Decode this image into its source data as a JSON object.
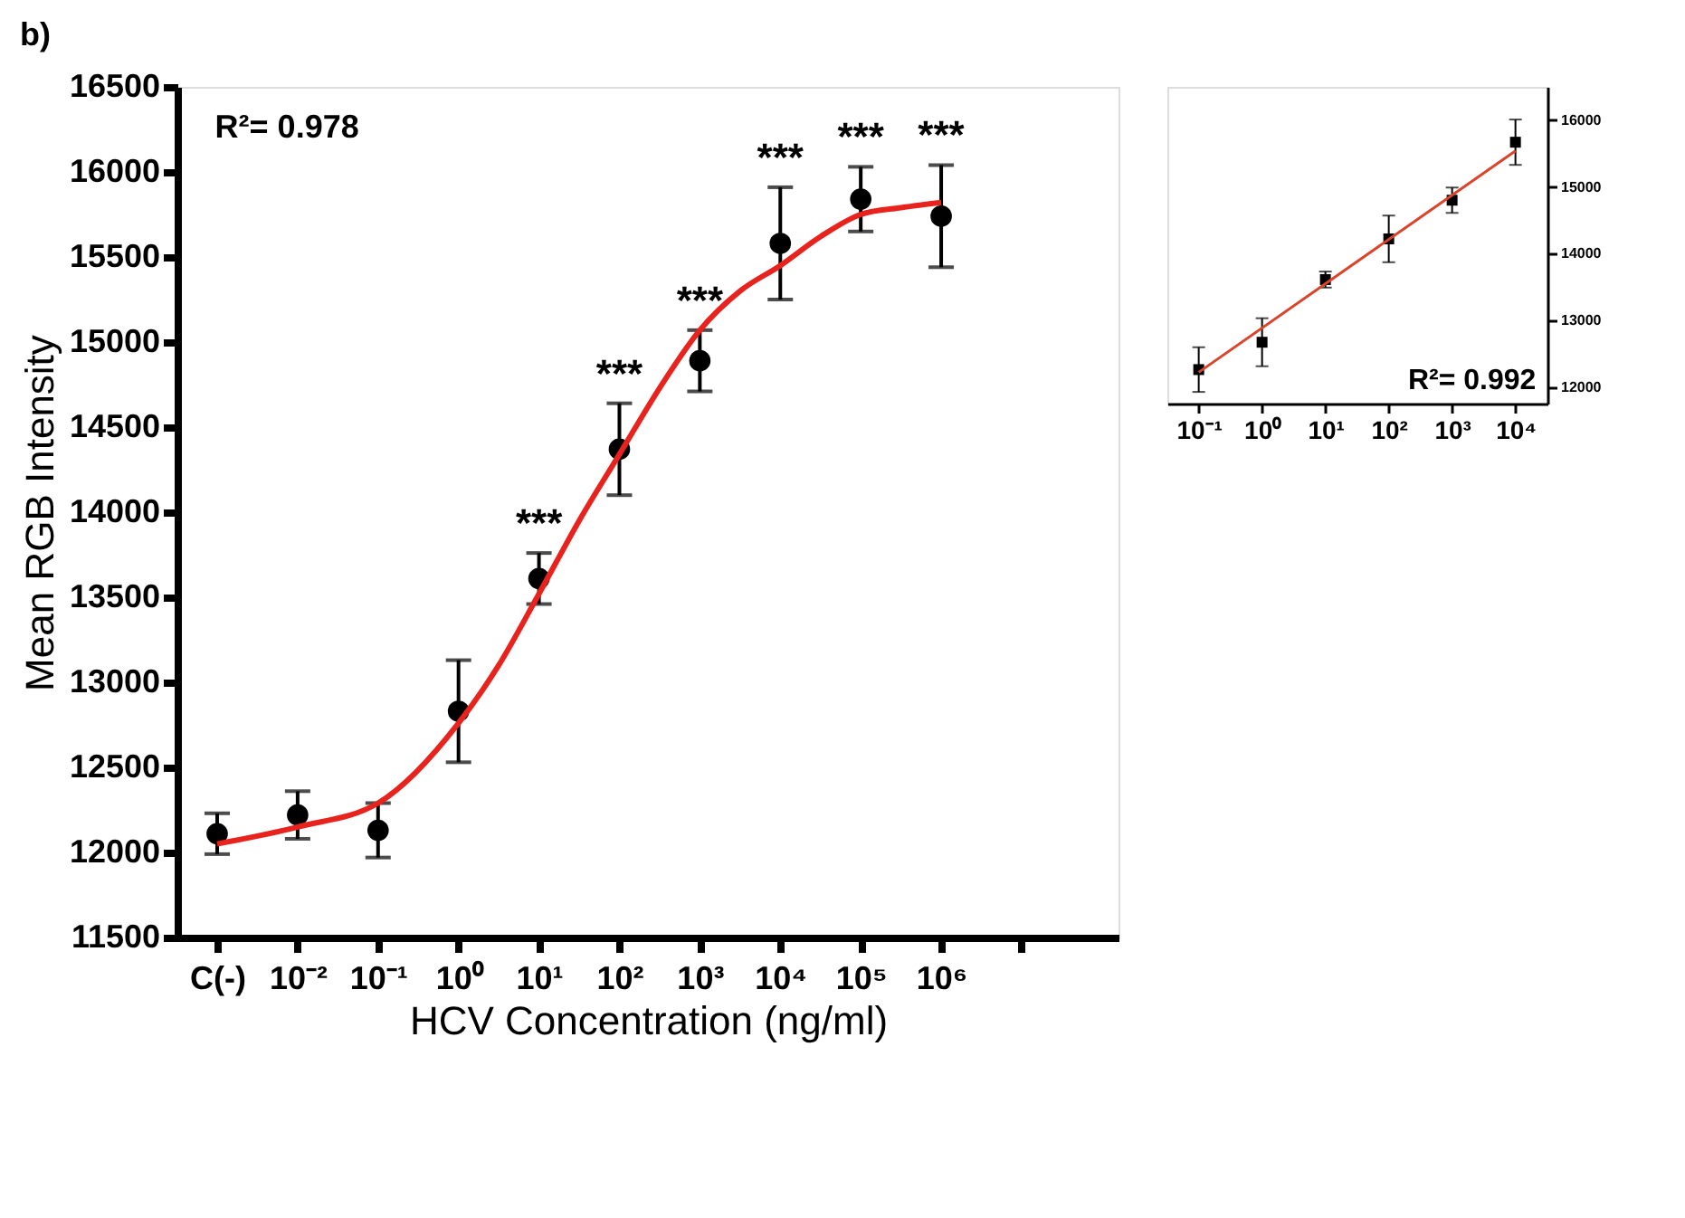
{
  "chart_data": [
    {
      "type": "scatter",
      "title": "b)",
      "xlabel": "HCV Concentration (ng/ml)",
      "ylabel": "Mean RGB Intensity",
      "x": [
        0.001,
        0.01,
        0.1,
        1,
        10,
        100,
        1000,
        10000,
        100000,
        1000000
      ],
      "series": [
        {
          "color": "#000000",
          "values": [
            12110,
            12220,
            12130,
            12830,
            13610,
            14370,
            14890,
            15580,
            15840,
            15740
          ],
          "errors": [
            120,
            140,
            160,
            300,
            150,
            270,
            180,
            330,
            190,
            300
          ]
        },
        {
          "type": "line",
          "marker": "none",
          "line_style": "solid",
          "color": "#e8231d",
          "x": [
            0.001,
            0.01,
            0.1,
            1,
            3.16,
            10,
            31.6,
            100,
            316,
            1000,
            3160,
            10000,
            31600,
            100000,
            316000,
            1000000
          ],
          "values": [
            12050,
            12150,
            12290,
            12760,
            13100,
            13520,
            13950,
            14340,
            14730,
            15070,
            15300,
            15450,
            15620,
            15750,
            15790,
            15820
          ]
        }
      ],
      "xlim": [
        0.00032,
        160000000
      ],
      "ylim": [
        11500,
        16500
      ],
      "log": "x",
      "xticks": [
        {
          "value": 0.001,
          "label": "C(-)"
        },
        {
          "value": 0.01,
          "label": "10⁻²"
        },
        {
          "value": 0.1,
          "label": "10⁻¹"
        },
        {
          "value": 1,
          "label": "10⁰"
        },
        {
          "value": 10,
          "label": "10¹"
        },
        {
          "value": 100,
          "label": "10²"
        },
        {
          "value": 1000,
          "label": "10³"
        },
        {
          "value": 10000,
          "label": "10⁴"
        },
        {
          "value": 100000,
          "label": "10⁵"
        },
        {
          "value": 1000000,
          "label": "10⁶"
        },
        {
          "value": 10000000,
          "label": null
        }
      ],
      "yticks": [
        11500,
        12000,
        12500,
        13000,
        13500,
        14000,
        14500,
        15000,
        15500,
        16000,
        16500
      ],
      "marker": "circle",
      "grid": false,
      "annotations": [
        "R²= 0.978",
        {
          "text": "***",
          "x": 10,
          "y": 13610
        },
        {
          "text": "***",
          "x": 100,
          "y": 14370
        },
        {
          "text": "***",
          "x": 1000,
          "y": 14890
        },
        {
          "text": "***",
          "x": 10000,
          "y": 15580
        },
        {
          "text": "***",
          "x": 100000,
          "y": 15840
        },
        {
          "text": "***",
          "x": 1000000,
          "y": 15740
        }
      ]
    },
    {
      "type": "scatter",
      "x": [
        0.1,
        1,
        10,
        100,
        1000,
        10000
      ],
      "series": [
        {
          "color": "#000000",
          "axis": "y2",
          "values": [
            12260,
            12670,
            13610,
            14220,
            14800,
            15670
          ],
          "errors": [
            335,
            360,
            120,
            350,
            190,
            340
          ]
        },
        {
          "type": "line",
          "marker": "none",
          "line_style": "solid",
          "axis": "y2",
          "color": "#d9452b",
          "x": [
            0.1,
            10000
          ],
          "values": [
            12220,
            15540
          ]
        }
      ],
      "xlim": [
        0.032,
        32000
      ],
      "y2lim": [
        11750,
        16500
      ],
      "log": "x",
      "xticks": [
        {
          "value": 0.1,
          "label": "10⁻¹"
        },
        {
          "value": 1,
          "label": "10⁰"
        },
        {
          "value": 10,
          "label": "10¹"
        },
        {
          "value": 100,
          "label": "10²"
        },
        {
          "value": 1000,
          "label": "10³"
        },
        {
          "value": 10000,
          "label": "10⁴"
        }
      ],
      "y2ticks": [
        12000,
        13000,
        14000,
        15000,
        16000
      ],
      "marker": "square",
      "grid": false,
      "annotations": [
        "R²= 0.992"
      ]
    }
  ]
}
